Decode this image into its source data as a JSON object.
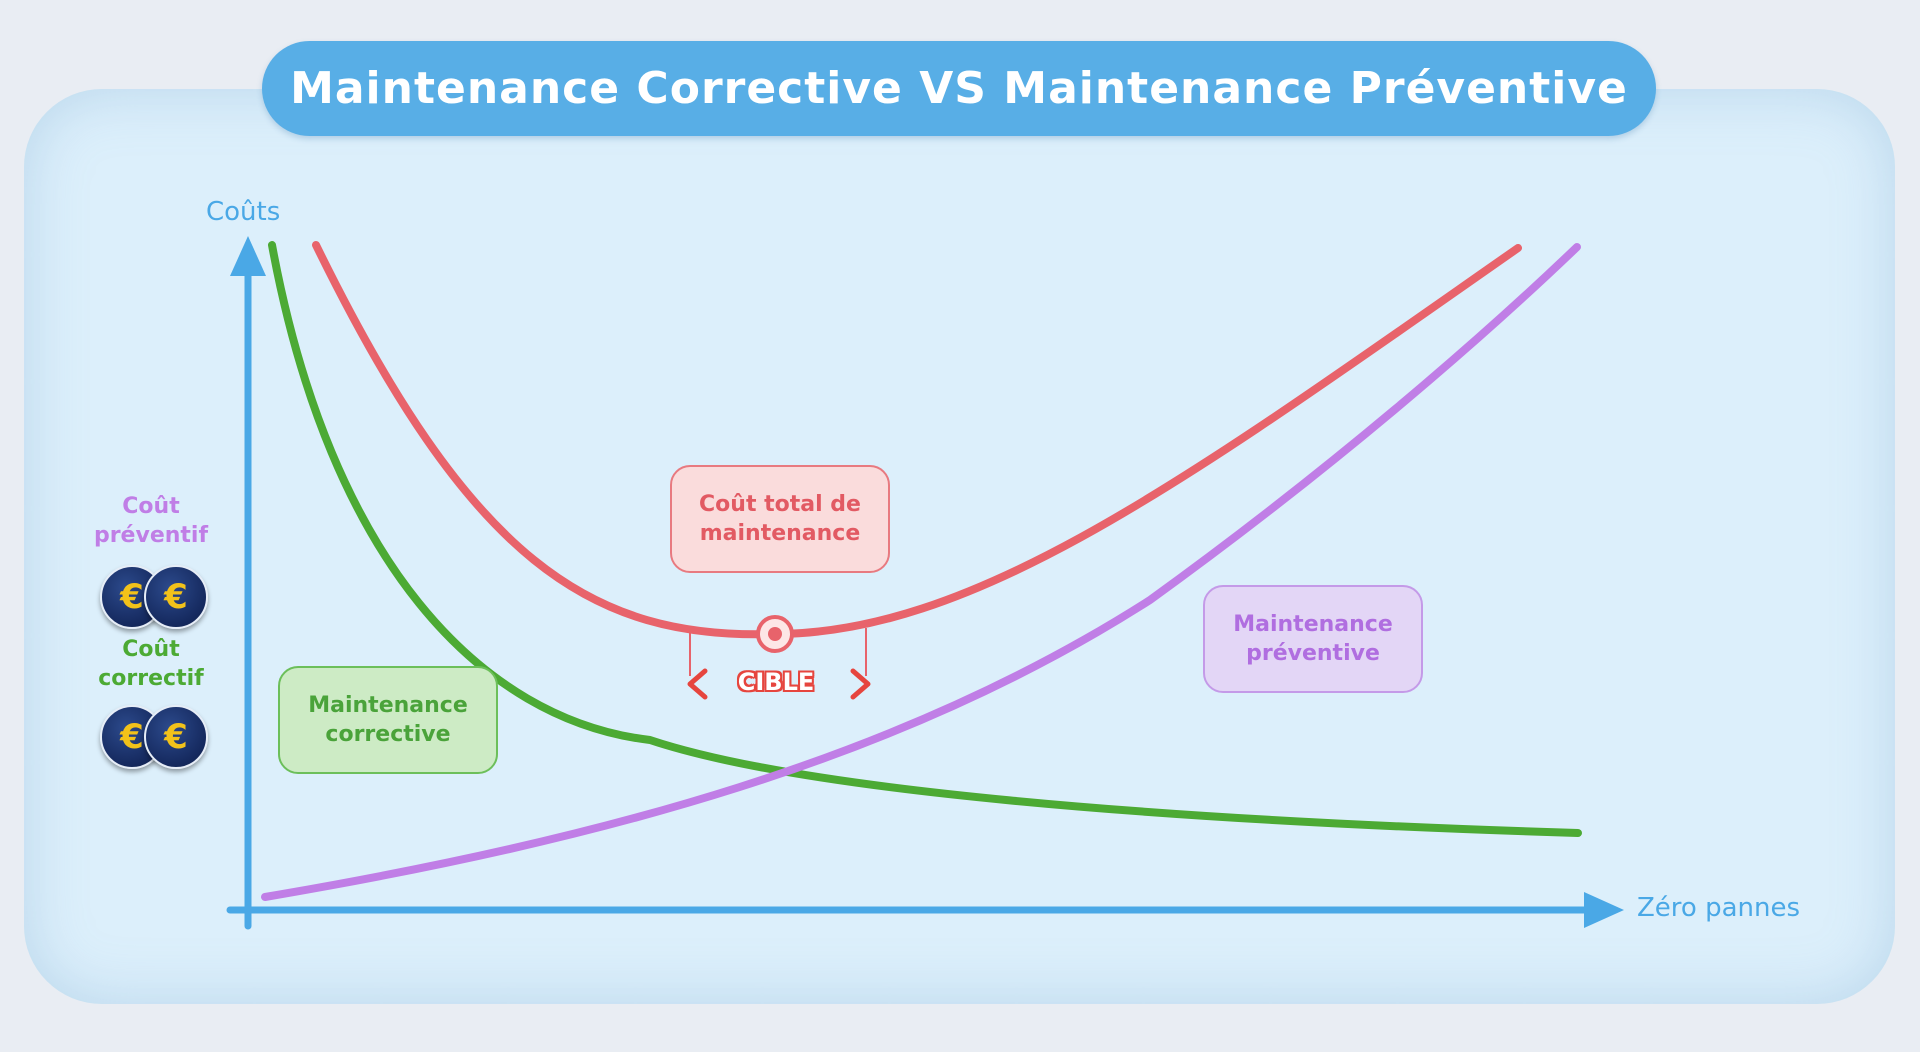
{
  "title": "Maintenance Corrective VS Maintenance Préventive",
  "axes": {
    "y_label": "Coûts",
    "x_label": "Zéro pannes"
  },
  "side_labels": {
    "preventive_cost": "Coût préventif",
    "corrective_cost": "Coût correctif",
    "coin_symbol": "€"
  },
  "boxes": {
    "total": "Coût total de maintenance",
    "corrective": "Maintenance corrective",
    "preventive": "Maintenance préventive"
  },
  "target": {
    "label": "CIBLE"
  },
  "colors": {
    "axis": "#4aa8e6",
    "total_curve": "#e8636b",
    "corrective_curve": "#4caa34",
    "preventive_curve": "#c07ee6",
    "title_bar": "#58aee6",
    "coin_symbol": "#f2c21a"
  },
  "icons": [
    "euro-coin-icon",
    "target-icon",
    "left-arrow-icon",
    "right-arrow-icon"
  ]
}
